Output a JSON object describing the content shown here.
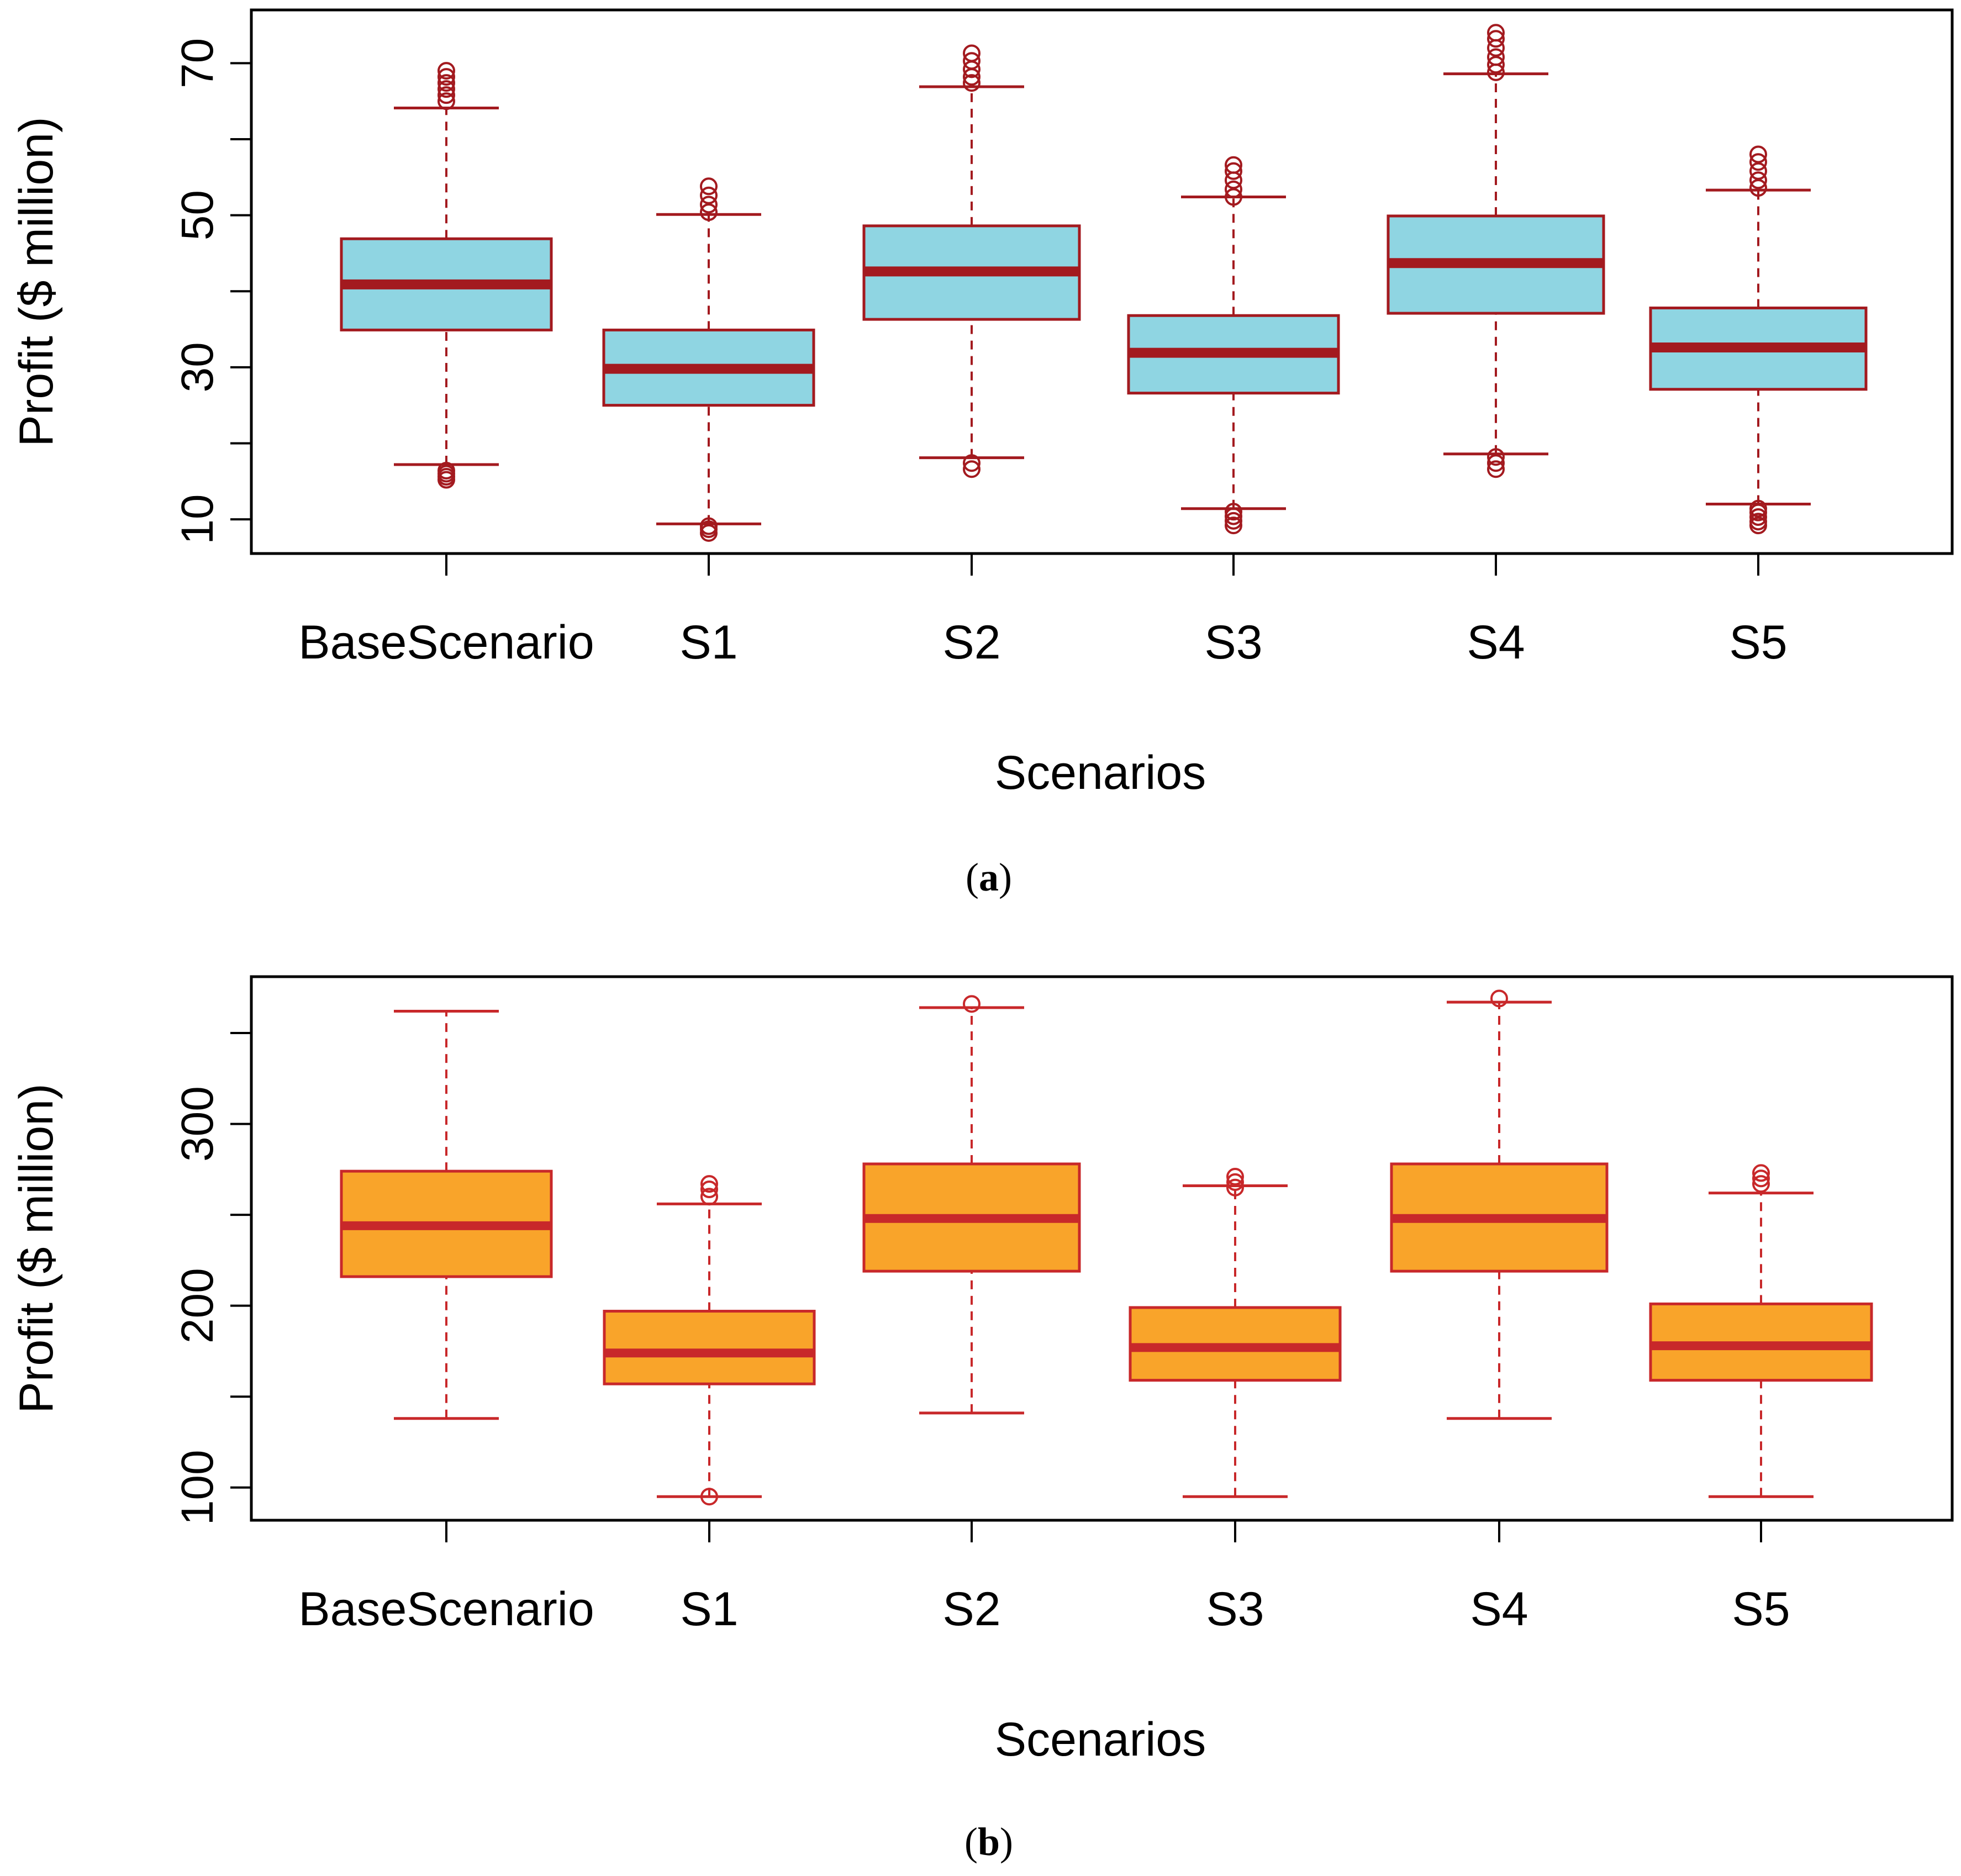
{
  "colors": {
    "panel_a_box_fill": "#8fd5e2",
    "panel_a_stroke": "#a31a1f",
    "panel_b_box_fill": "#f9a42a",
    "panel_b_stroke": "#c8282a",
    "axis": "#000000"
  },
  "chart_data": [
    {
      "type": "boxplot",
      "panel_label": "a",
      "xlabel": "Scenarios",
      "ylabel": "Profit ($ million)",
      "ylim": [
        5.5,
        77
      ],
      "yticks": [
        10,
        30,
        50,
        70
      ],
      "ytick_minor": [
        20,
        40,
        60
      ],
      "categories": [
        "BaseScenario",
        "S1",
        "S2",
        "S3",
        "S4",
        "S5"
      ],
      "boxes": [
        {
          "category": "BaseScenario",
          "whisker_low": 17.2,
          "q1": 34.9,
          "median": 40.9,
          "q3": 46.9,
          "whisker_high": 64.1,
          "outliers_low": [
            15.2,
            15.6,
            16.0,
            16.4
          ],
          "outliers_high": [
            65.0,
            65.8,
            66.6,
            67.4,
            68.2,
            69.0
          ]
        },
        {
          "category": "S1",
          "whisker_low": 9.4,
          "q1": 25.0,
          "median": 29.8,
          "q3": 34.9,
          "whisker_high": 50.1,
          "outliers_low": [
            8.2,
            8.7,
            9.1
          ],
          "outliers_high": [
            50.4,
            51.4,
            52.6,
            53.8
          ]
        },
        {
          "category": "S2",
          "whisker_low": 18.1,
          "q1": 36.3,
          "median": 42.6,
          "q3": 48.6,
          "whisker_high": 66.9,
          "outliers_low": [
            16.6,
            17.4
          ],
          "outliers_high": [
            67.4,
            68.2,
            69.2,
            70.3,
            71.3
          ]
        },
        {
          "category": "S3",
          "whisker_low": 11.4,
          "q1": 26.6,
          "median": 31.9,
          "q3": 36.8,
          "whisker_high": 52.4,
          "outliers_low": [
            9.2,
            9.8,
            10.4,
            11.0
          ],
          "outliers_high": [
            52.4,
            53.4,
            54.6,
            55.8,
            56.6
          ]
        },
        {
          "category": "S4",
          "whisker_low": 18.6,
          "q1": 37.1,
          "median": 43.7,
          "q3": 49.9,
          "whisker_high": 68.6,
          "outliers_low": [
            16.6,
            17.4,
            18.2
          ],
          "outliers_high": [
            68.8,
            69.8,
            70.8,
            72.0,
            73.2,
            74.0
          ]
        },
        {
          "category": "S5",
          "whisker_low": 12.0,
          "q1": 27.1,
          "median": 32.6,
          "q3": 37.8,
          "whisker_high": 53.3,
          "outliers_low": [
            9.2,
            9.7,
            10.3,
            10.9,
            11.4
          ],
          "outliers_high": [
            53.6,
            54.6,
            55.8,
            57.0,
            58.0
          ]
        }
      ]
    },
    {
      "type": "boxplot",
      "panel_label": "b",
      "xlabel": "Scenarios",
      "ylabel": "Profit ($ million)",
      "ylim": [
        82,
        381
      ],
      "yticks": [
        100,
        200,
        300
      ],
      "ytick_minor": [
        150,
        250,
        350
      ],
      "categories": [
        "BaseScenario",
        "S1",
        "S2",
        "S3",
        "S4",
        "S5"
      ],
      "boxes": [
        {
          "category": "BaseScenario",
          "whisker_low": 138,
          "q1": 216,
          "median": 244,
          "q3": 274,
          "whisker_high": 362,
          "outliers_low": [],
          "outliers_high": []
        },
        {
          "category": "S1",
          "whisker_low": 95,
          "q1": 157,
          "median": 174,
          "q3": 197,
          "whisker_high": 256,
          "outliers_low": [
            95
          ],
          "outliers_high": [
            260,
            264,
            267
          ]
        },
        {
          "category": "S2",
          "whisker_low": 141,
          "q1": 219,
          "median": 248,
          "q3": 278,
          "whisker_high": 364,
          "outliers_low": [],
          "outliers_high": [
            366
          ]
        },
        {
          "category": "S3",
          "whisker_low": 95,
          "q1": 159,
          "median": 177,
          "q3": 199,
          "whisker_high": 266,
          "outliers_low": [],
          "outliers_high": [
            265,
            268,
            271
          ]
        },
        {
          "category": "S4",
          "whisker_low": 138,
          "q1": 219,
          "median": 248,
          "q3": 278,
          "whisker_high": 367,
          "outliers_low": [],
          "outliers_high": [
            369
          ]
        },
        {
          "category": "S5",
          "whisker_low": 95,
          "q1": 159,
          "median": 178,
          "q3": 201,
          "whisker_high": 262,
          "outliers_low": [],
          "outliers_high": [
            267,
            270,
            273
          ]
        }
      ]
    }
  ]
}
